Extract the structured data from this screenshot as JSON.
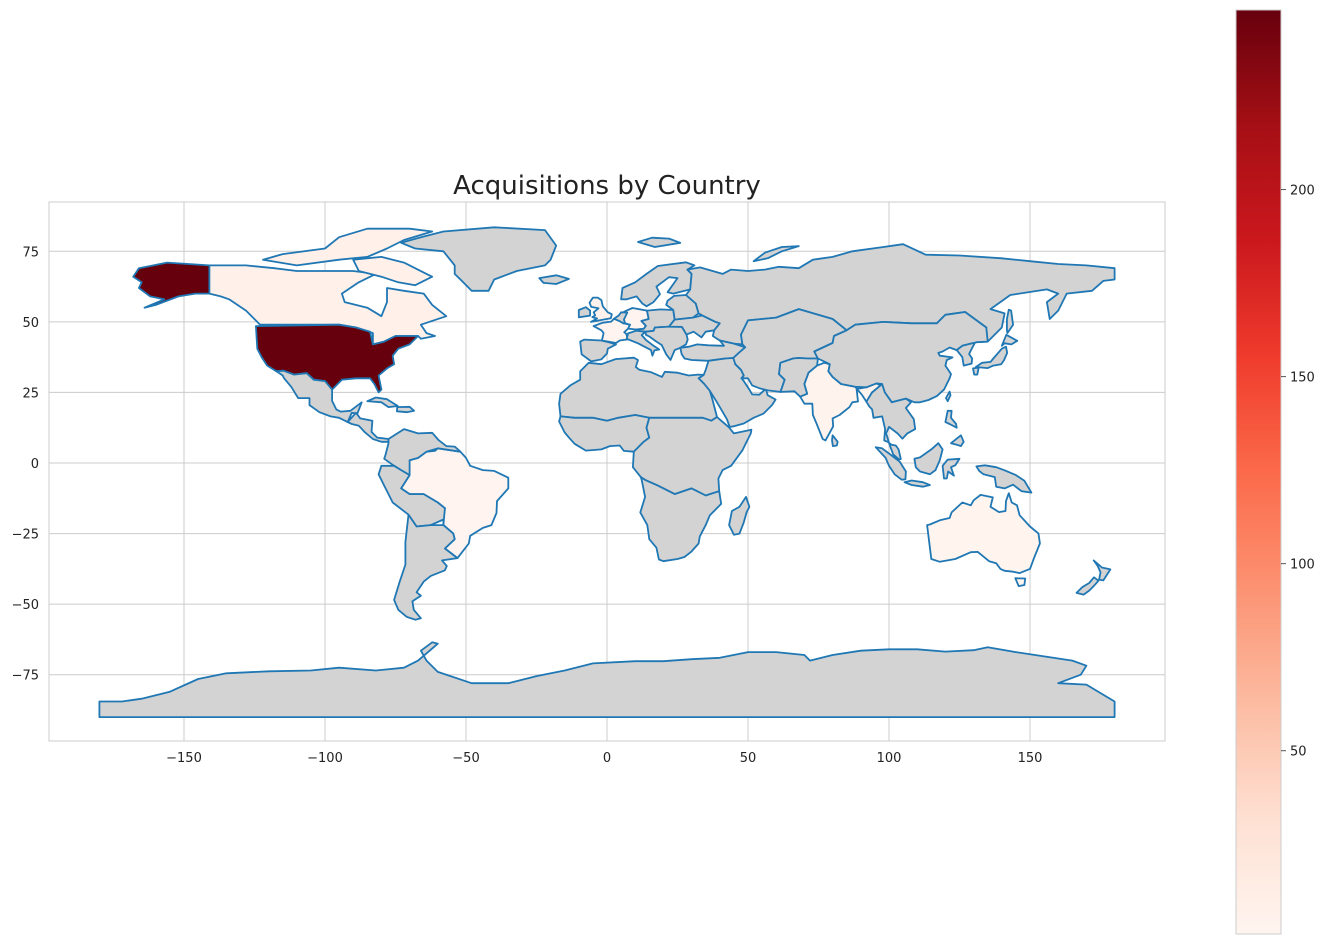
{
  "chart_data": {
    "type": "choropleth",
    "title": "Acquisitions by Country",
    "xlabel": "",
    "ylabel": "",
    "xlim": [
      -199,
      195
    ],
    "ylim": [
      -98,
      92
    ],
    "xticks": [
      -150,
      -100,
      -50,
      0,
      50,
      100,
      150
    ],
    "yticks": [
      75,
      50,
      25,
      0,
      -25,
      -50,
      -75
    ],
    "xtick_labels": [
      "−150",
      "−100",
      "−50",
      "0",
      "50",
      "100",
      "150"
    ],
    "ytick_labels": [
      "75",
      "50",
      "25",
      "0",
      "−25",
      "−50",
      "−75"
    ],
    "grid": true,
    "colormap": "Reds",
    "colorbar": {
      "min": 1,
      "max": 248,
      "ticks": [
        50,
        100,
        150,
        200
      ],
      "tick_labels": [
        "50",
        "100",
        "150",
        "200"
      ]
    },
    "missing_color": "#d3d3d3",
    "edge_color": "#1f77b4",
    "highlighted_countries": [
      {
        "name": "United States",
        "value": 248
      },
      {
        "name": "Canada",
        "value": 8
      },
      {
        "name": "United Kingdom",
        "value": 5
      },
      {
        "name": "India",
        "value": 4
      },
      {
        "name": "Brazil",
        "value": 2
      },
      {
        "name": "Australia",
        "value": 3
      },
      {
        "name": "France",
        "value": 2
      },
      {
        "name": "Germany",
        "value": 2
      }
    ]
  },
  "colors": {
    "grid": "#cccccc",
    "missing": "#d3d3d3",
    "edge": "#1f77b4",
    "reds_low": "#fff5f0",
    "reds_high": "#67000d"
  }
}
